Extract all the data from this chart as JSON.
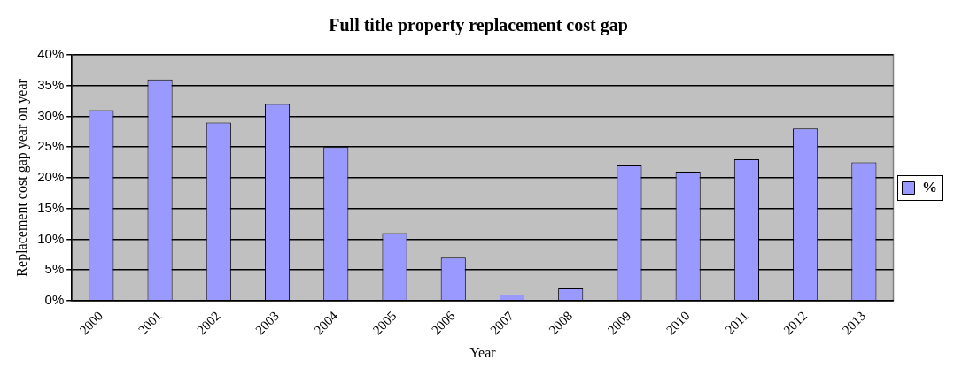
{
  "chart_data": {
    "type": "bar",
    "title": "Full title property replacement cost gap",
    "xlabel": "Year",
    "ylabel": "Replacement cost gap year on year",
    "categories": [
      "2000",
      "2001",
      "2002",
      "2003",
      "2004",
      "2005",
      "2006",
      "2007",
      "2008",
      "2009",
      "2010",
      "2011",
      "2012",
      "2013"
    ],
    "series": [
      {
        "name": "%",
        "color": "#9999ff",
        "values": [
          31,
          36,
          29,
          32,
          25,
          11,
          7,
          1,
          2,
          22,
          21,
          23,
          28,
          22.5
        ]
      }
    ],
    "ylim": [
      0,
      40
    ],
    "yticks": [
      {
        "value": 0,
        "label": "0%"
      },
      {
        "value": 5,
        "label": "5%"
      },
      {
        "value": 10,
        "label": "10%"
      },
      {
        "value": 15,
        "label": "15%"
      },
      {
        "value": 20,
        "label": "20%"
      },
      {
        "value": 25,
        "label": "25%"
      },
      {
        "value": 30,
        "label": "30%"
      },
      {
        "value": 35,
        "label": "35%"
      },
      {
        "value": 40,
        "label": "40%"
      }
    ],
    "grid": "y",
    "legend": "right"
  }
}
